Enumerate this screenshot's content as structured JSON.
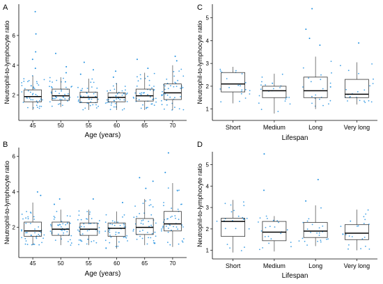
{
  "chart_data": [
    {
      "panel": "A",
      "type": "box",
      "xlabel": "Age (years)",
      "ylabel": "Neutrophil-to-lymphocyte ratio",
      "categories": [
        "45",
        "50",
        "55",
        "60",
        "65",
        "70"
      ],
      "ylim": [
        0.3,
        8.1
      ],
      "yticks": [
        2,
        4,
        6
      ],
      "grid": false,
      "point_color": "#1f8fe0",
      "boxes": [
        {
          "q1": 1.55,
          "median": 1.9,
          "q3": 2.35,
          "wlo": 1.0,
          "whi": 3.3
        },
        {
          "q1": 1.65,
          "median": 1.95,
          "q3": 2.4,
          "wlo": 1.2,
          "whi": 3.2
        },
        {
          "q1": 1.5,
          "median": 1.85,
          "q3": 2.2,
          "wlo": 1.0,
          "whi": 3.1
        },
        {
          "q1": 1.55,
          "median": 1.85,
          "q3": 2.15,
          "wlo": 1.0,
          "whi": 2.8
        },
        {
          "q1": 1.6,
          "median": 1.95,
          "q3": 2.4,
          "wlo": 1.0,
          "whi": 3.5
        },
        {
          "q1": 1.7,
          "median": 2.15,
          "q3": 2.75,
          "wlo": 1.0,
          "whi": 4.0
        }
      ],
      "outliers": [
        {
          "cat": "45",
          "values": [
            7.6,
            6.1,
            4.9,
            4.4,
            3.8
          ]
        },
        {
          "cat": "50",
          "values": [
            4.8,
            3.9,
            3.5
          ]
        },
        {
          "cat": "55",
          "values": [
            4.2,
            3.7,
            3.4
          ]
        },
        {
          "cat": "60",
          "values": [
            3.6,
            3.2
          ]
        },
        {
          "cat": "65",
          "values": [
            4.4,
            3.8
          ]
        },
        {
          "cat": "70",
          "values": [
            4.6,
            4.3
          ]
        }
      ]
    },
    {
      "panel": "B",
      "type": "box",
      "xlabel": "Age (years)",
      "ylabel": "Neutrophil-to-lymphocyte ratio",
      "categories": [
        "45",
        "50",
        "55",
        "60",
        "65",
        "70"
      ],
      "ylim": [
        0.3,
        6.5
      ],
      "yticks": [
        2,
        4,
        6
      ],
      "grid": false,
      "point_color": "#1f8fe0",
      "boxes": [
        {
          "q1": 1.5,
          "median": 1.8,
          "q3": 2.3,
          "wlo": 1.0,
          "whi": 3.4
        },
        {
          "q1": 1.55,
          "median": 1.9,
          "q3": 2.3,
          "wlo": 1.0,
          "whi": 3.0
        },
        {
          "q1": 1.55,
          "median": 1.9,
          "q3": 2.25,
          "wlo": 1.0,
          "whi": 3.0
        },
        {
          "q1": 1.5,
          "median": 1.95,
          "q3": 2.25,
          "wlo": 0.8,
          "whi": 2.9
        },
        {
          "q1": 1.6,
          "median": 2.0,
          "q3": 2.5,
          "wlo": 1.0,
          "whi": 3.6
        },
        {
          "q1": 1.8,
          "median": 2.2,
          "q3": 2.9,
          "wlo": 0.9,
          "whi": 4.5
        }
      ],
      "outliers": [
        {
          "cat": "45",
          "values": [
            4.0,
            3.8
          ]
        },
        {
          "cat": "50",
          "values": [
            3.6,
            3.3
          ]
        },
        {
          "cat": "55",
          "values": [
            3.6
          ]
        },
        {
          "cat": "60",
          "values": [
            3.4
          ]
        },
        {
          "cat": "65",
          "values": [
            4.8,
            4.6,
            4.2
          ]
        },
        {
          "cat": "70",
          "values": [
            6.2,
            5.1
          ]
        }
      ]
    },
    {
      "panel": "C",
      "type": "box",
      "xlabel": "Lifespan",
      "ylabel": "Neutrophil-to-lymphocyte ratio",
      "categories": [
        "Short",
        "Medium",
        "Long",
        "Very long"
      ],
      "ylim": [
        0.5,
        5.6
      ],
      "yticks": [
        1,
        2,
        3,
        4,
        5
      ],
      "grid": false,
      "point_color": "#1f8fe0",
      "boxes": [
        {
          "q1": 1.75,
          "median": 2.1,
          "q3": 2.6,
          "wlo": 1.25,
          "whi": 2.85
        },
        {
          "q1": 1.5,
          "median": 1.8,
          "q3": 2.0,
          "wlo": 0.8,
          "whi": 2.55
        },
        {
          "q1": 1.5,
          "median": 1.8,
          "q3": 2.4,
          "wlo": 1.0,
          "whi": 3.3
        },
        {
          "q1": 1.5,
          "median": 1.65,
          "q3": 2.3,
          "wlo": 1.2,
          "whi": 3.05
        }
      ],
      "outliers": [
        {
          "cat": "Long",
          "values": [
            5.4,
            4.5,
            4.1,
            3.8
          ]
        },
        {
          "cat": "Very long",
          "values": [
            3.9
          ]
        }
      ]
    },
    {
      "panel": "D",
      "type": "box",
      "xlabel": "Lifespan",
      "ylabel": "Neutrophil-to-lymphocyte ratio",
      "categories": [
        "Short",
        "Medium",
        "Long",
        "Very long"
      ],
      "ylim": [
        0.6,
        5.6
      ],
      "yticks": [
        1,
        2,
        3,
        4,
        5
      ],
      "grid": false,
      "point_color": "#1f8fe0",
      "boxes": [
        {
          "q1": 1.65,
          "median": 2.35,
          "q3": 2.5,
          "wlo": 0.9,
          "whi": 3.35
        },
        {
          "q1": 1.45,
          "median": 1.85,
          "q3": 2.35,
          "wlo": 0.95,
          "whi": 2.6
        },
        {
          "q1": 1.6,
          "median": 1.9,
          "q3": 2.3,
          "wlo": 1.2,
          "whi": 3.1
        },
        {
          "q1": 1.5,
          "median": 1.8,
          "q3": 2.2,
          "wlo": 1.0,
          "whi": 2.9
        }
      ],
      "outliers": [
        {
          "cat": "Medium",
          "values": [
            5.5,
            3.8
          ]
        },
        {
          "cat": "Long",
          "values": [
            4.3,
            3.3
          ]
        }
      ]
    }
  ]
}
